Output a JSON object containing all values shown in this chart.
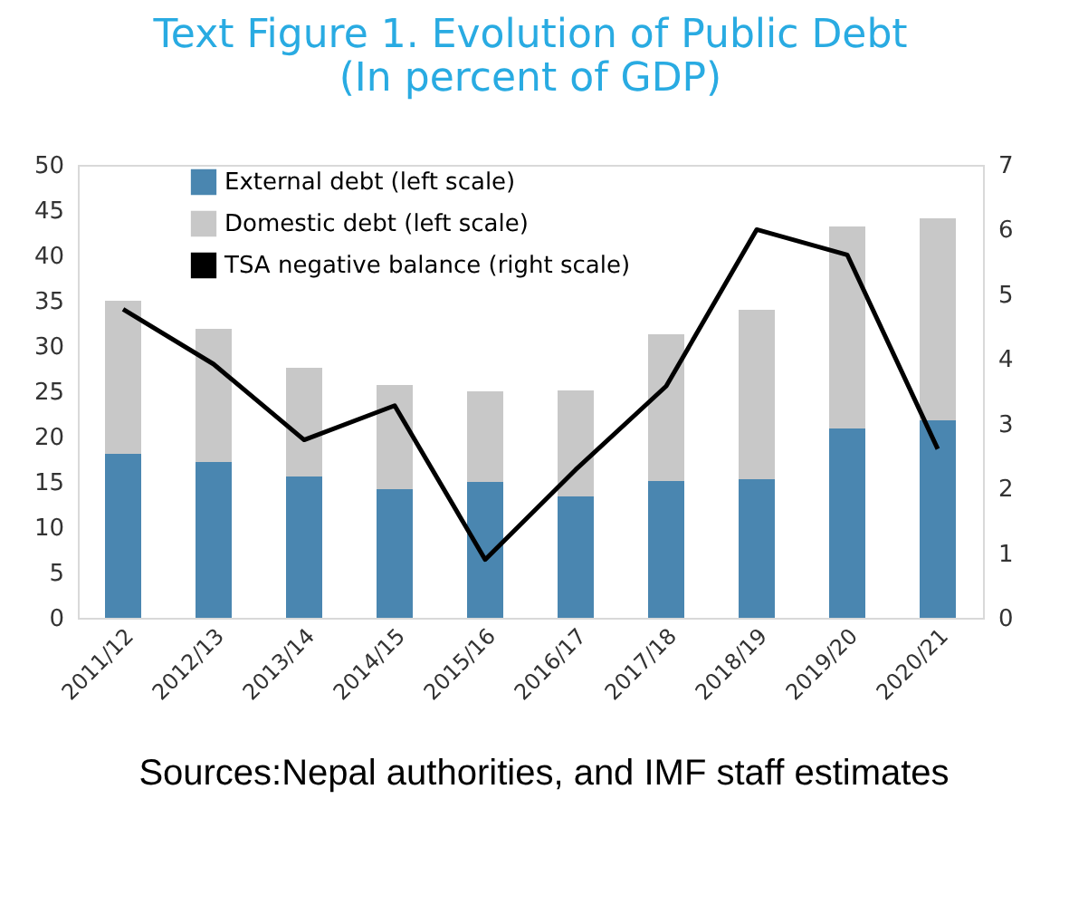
{
  "chart_data": {
    "type": "bar",
    "title": "Text Figure 1. Evolution of Public Debt",
    "subtitle": "(In percent of GDP)",
    "categories": [
      "2011/12",
      "2012/13",
      "2013/14",
      "2014/15",
      "2015/16",
      "2016/17",
      "2017/18",
      "2018/19",
      "2019/20",
      "2020/21"
    ],
    "stacked": true,
    "series": [
      {
        "name": "External debt (left scale)",
        "color": "#4a86b0",
        "values": [
          18.1,
          17.2,
          15.6,
          14.2,
          15.0,
          13.4,
          15.1,
          15.3,
          20.9,
          21.8
        ]
      },
      {
        "name": "Domestic debt (left scale)",
        "color": "#c8c8c8",
        "values": [
          16.9,
          14.7,
          12.0,
          11.5,
          10.0,
          11.7,
          16.2,
          18.7,
          22.3,
          22.3
        ]
      },
      {
        "name": "TSA negative balance (right scale)",
        "type": "line",
        "axis": "y2",
        "color": "#000000",
        "values": [
          4.77,
          3.92,
          2.75,
          3.28,
          0.9,
          2.29,
          3.58,
          6.0,
          5.61,
          2.61
        ]
      }
    ],
    "ylim": [
      0,
      50
    ],
    "yticks": [
      0,
      5,
      10,
      15,
      20,
      25,
      30,
      35,
      40,
      45,
      50
    ],
    "y2lim": [
      0,
      7
    ],
    "y2ticks": [
      0,
      1,
      2,
      3,
      4,
      5,
      6,
      7
    ],
    "grid": false,
    "legend": "top left",
    "marker": "none",
    "annotations": [
      "Sources:Nepal authorities, and IMF staff estimates"
    ]
  }
}
